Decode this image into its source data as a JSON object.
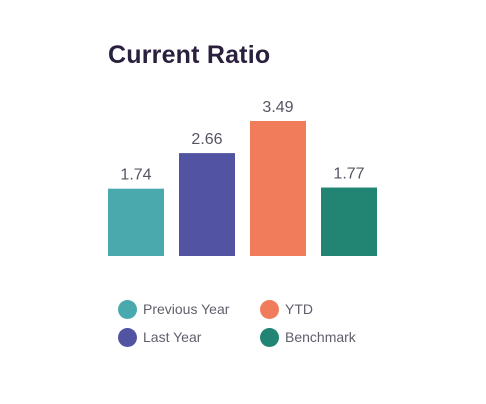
{
  "chart_data": {
    "type": "bar",
    "title": "Current Ratio",
    "categories": [
      "Previous Year",
      "Last Year",
      "YTD",
      "Benchmark"
    ],
    "values": [
      1.74,
      2.66,
      3.49,
      1.77
    ],
    "value_labels": [
      "1.74",
      "2.66",
      "3.49",
      "1.77"
    ],
    "colors": [
      "#4aa9ac",
      "#5254a3",
      "#f07c5c",
      "#228574"
    ],
    "ylim": [
      0,
      3.49
    ],
    "grid": false,
    "legend": "bottom",
    "legend_entries": [
      {
        "label": "Previous Year",
        "color": "#4aa9ac"
      },
      {
        "label": "YTD",
        "color": "#f07c5c"
      },
      {
        "label": "Last Year",
        "color": "#5254a3"
      },
      {
        "label": "Benchmark",
        "color": "#228574"
      }
    ]
  }
}
